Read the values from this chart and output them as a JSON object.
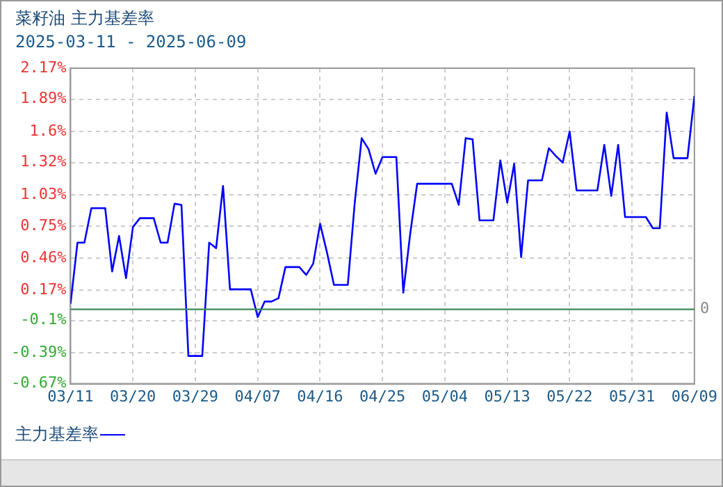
{
  "chart_data": {
    "type": "line",
    "title": "菜籽油  主力基差率",
    "subtitle": "2025-03-11 - 2025-06-09",
    "x": [
      "--03-11",
      "--03-12",
      "--03-13",
      "--03-14",
      "--03-16",
      "--03-17",
      "--03-18",
      "--03-19",
      "--03-20",
      "--03-21",
      "--03-23",
      "--03-24",
      "--03-25",
      "--03-26",
      "--03-27",
      "--03-28",
      "--03-30",
      "--03-31",
      "--04-01",
      "--04-02",
      "--04-03",
      "--04-06",
      "--04-07",
      "--04-08",
      "--04-09",
      "--04-10",
      "--04-11",
      "--04-13",
      "--04-14",
      "--04-15",
      "--04-16",
      "--04-17",
      "--04-18",
      "--04-20",
      "--04-21",
      "--04-22",
      "--04-23",
      "--04-24",
      "--04-25",
      "--04-27",
      "--04-28",
      "--04-29",
      "--04-30",
      "--05-05",
      "--05-06",
      "--05-07",
      "--05-08",
      "--05-09",
      "--05-11",
      "--05-12",
      "--05-13",
      "--05-14",
      "--05-15",
      "--05-16",
      "--05-18",
      "--05-19",
      "--05-20",
      "--05-21",
      "--05-22",
      "--05-23",
      "--05-26",
      "--05-27",
      "--05-28",
      "--05-29",
      "--05-30",
      "--06-02",
      "--06-03",
      "--06-04",
      "--06-05",
      "--06-06",
      "--06-08",
      "--06-09"
    ],
    "series": [
      {
        "name": "主力基差率",
        "color": "#0000ff",
        "values": [
          0.05,
          0.6,
          0.6,
          0.91,
          0.91,
          0.34,
          0.66,
          0.28,
          0.74,
          0.82,
          0.82,
          0.6,
          0.6,
          0.95,
          0.94,
          -0.42,
          -0.42,
          0.6,
          0.55,
          1.11,
          0.18,
          0.18,
          -0.07,
          0.07,
          0.07,
          0.1,
          0.38,
          0.38,
          0.31,
          0.41,
          0.77,
          0.51,
          0.22,
          0.22,
          0.96,
          1.54,
          1.44,
          1.22,
          1.37,
          1.37,
          0.15,
          0.68,
          1.13,
          1.13,
          0.94,
          1.54,
          1.53,
          0.8,
          0.8,
          1.34,
          0.96,
          1.31,
          0.47,
          1.16,
          1.16,
          1.45,
          1.38,
          1.32,
          1.6,
          1.07,
          1.07,
          1.48,
          1.02,
          1.48,
          0.83,
          0.83,
          0.73,
          0.73,
          1.77,
          1.36,
          1.36,
          1.92
        ]
      }
    ],
    "xlim": [
      "--03-11",
      "--06-09"
    ],
    "xticks": [
      {
        "value": "--03-11",
        "label": "03/11"
      },
      {
        "value": "--03-20",
        "label": "03/20"
      },
      {
        "value": "--03-29",
        "label": "03/29"
      },
      {
        "value": "--04-07",
        "label": "04/07"
      },
      {
        "value": "--04-16",
        "label": "04/16"
      },
      {
        "value": "--04-25",
        "label": "04/25"
      },
      {
        "value": "--05-04",
        "label": "05/04"
      },
      {
        "value": "--05-13",
        "label": "05/13"
      },
      {
        "value": "--05-22",
        "label": "05/22"
      },
      {
        "value": "--05-31",
        "label": "05/31"
      },
      {
        "value": "--06-09",
        "label": "06/09"
      }
    ],
    "ylim": [
      -0.67,
      2.17
    ],
    "yticks": [
      {
        "value": 2.17,
        "label": "2.17%"
      },
      {
        "value": 1.89,
        "label": "1.89%"
      },
      {
        "value": 1.6,
        "label": "1.6%"
      },
      {
        "value": 1.32,
        "label": "1.32%"
      },
      {
        "value": 1.03,
        "label": "1.03%"
      },
      {
        "value": 0.75,
        "label": "0.75%"
      },
      {
        "value": 0.46,
        "label": "0.46%"
      },
      {
        "value": 0.17,
        "label": "0.17%"
      },
      {
        "value": -0.1,
        "label": "-0.1%"
      },
      {
        "value": -0.39,
        "label": "-0.39%"
      },
      {
        "value": -0.67,
        "label": "-0.67%"
      }
    ],
    "ref_lines": [
      {
        "axis": "y",
        "value": 0,
        "label": "0",
        "color": "#3a8a5a"
      }
    ],
    "grid": true,
    "legend": "bottom left",
    "marker": "none",
    "line_style": "solid"
  }
}
